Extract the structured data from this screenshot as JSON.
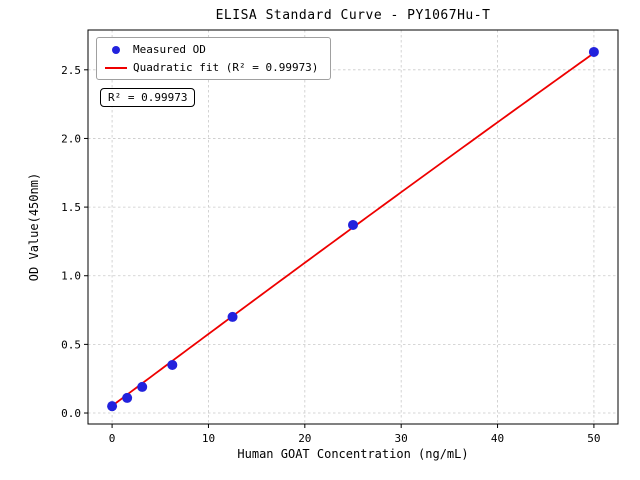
{
  "chart_data": {
    "type": "scatter",
    "title": "ELISA Standard Curve - PY1067Hu-T",
    "xlabel": "Human GOAT Concentration (ng/mL)",
    "ylabel": "OD Value(450nm)",
    "annotation": "R² = 0.99973",
    "xlim": [
      -2.5,
      52.5
    ],
    "ylim": [
      -0.08,
      2.79
    ],
    "xticks": [
      0,
      10,
      20,
      30,
      40,
      50
    ],
    "yticks": [
      0.0,
      0.5,
      1.0,
      1.5,
      2.0,
      2.5
    ],
    "xtick_labels": [
      "0",
      "10",
      "20",
      "30",
      "40",
      "50"
    ],
    "ytick_labels": [
      "0.0",
      "0.5",
      "1.0",
      "1.5",
      "2.0",
      "2.5"
    ],
    "grid": true,
    "legend_position": "upper-left",
    "colors": {
      "measured": "#2222dd",
      "fit": "#ee0000",
      "grid": "#c9c9c9",
      "axes": "#000000"
    },
    "series": [
      {
        "name": "Measured OD",
        "type": "scatter",
        "color": "#2222dd",
        "x": [
          0,
          1.563,
          3.125,
          6.25,
          12.5,
          25,
          50
        ],
        "y": [
          0.05,
          0.11,
          0.19,
          0.35,
          0.7,
          1.37,
          2.63
        ]
      },
      {
        "name": "Quadratic fit (R² = 0.99973)",
        "type": "line",
        "color": "#ee0000",
        "fit": {
          "a": -2.4e-05,
          "b": 0.0526,
          "c": 0.052
        },
        "x_range": [
          0,
          50
        ]
      }
    ]
  }
}
